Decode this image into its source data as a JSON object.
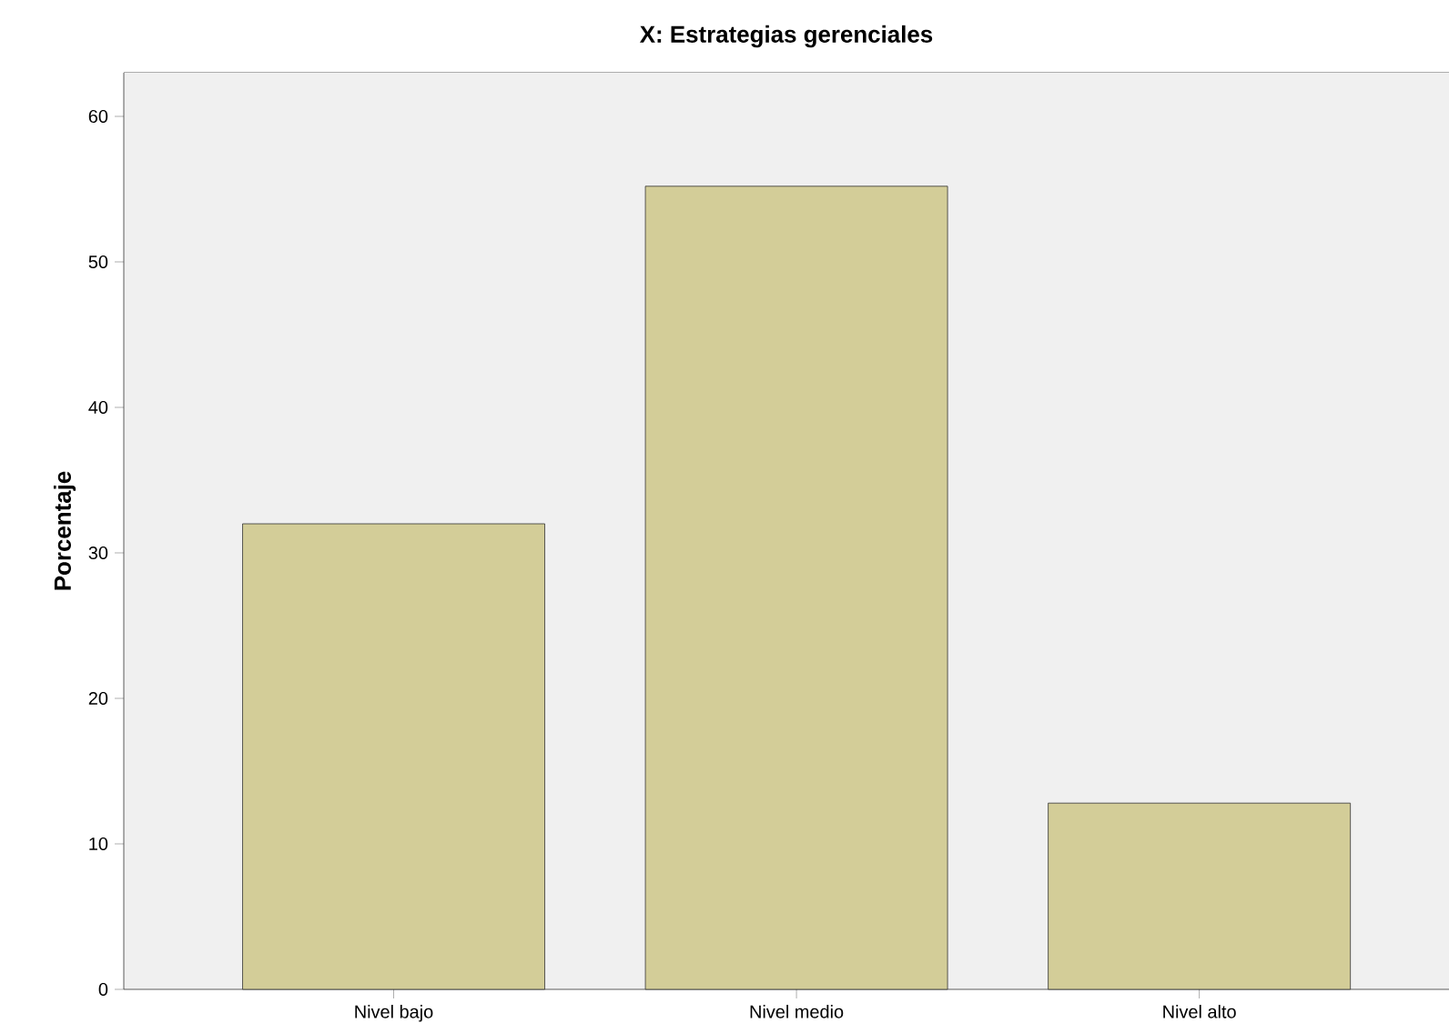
{
  "chart_data": {
    "type": "bar",
    "title": "X: Estrategias gerenciales",
    "ylabel": "Porcentaje",
    "categories": [
      "Nivel bajo",
      "Nivel medio",
      "Nivel alto"
    ],
    "values": [
      32.0,
      55.2,
      12.8
    ],
    "color": "#d3cd98",
    "ylim": [
      0,
      63
    ],
    "yticks": [
      0,
      10,
      20,
      30,
      40,
      50,
      60
    ],
    "grid": false
  }
}
